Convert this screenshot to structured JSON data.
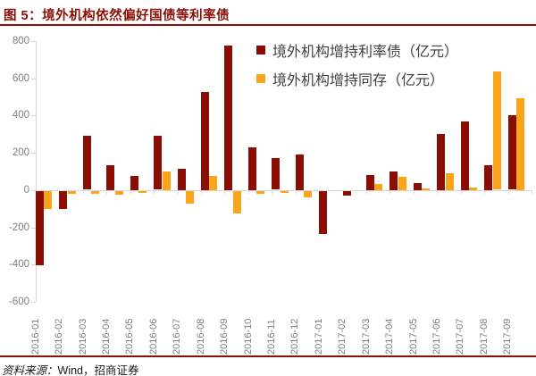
{
  "title": "图 5：境外机构依然偏好国债等利率债",
  "footer": {
    "prefix": "资料来源：",
    "source": "Wind，招商证券"
  },
  "colors": {
    "series_rate_bond": "#8B0E04",
    "series_ncd": "#F9A41B",
    "title_text": "#8B0E04",
    "rule_line": "#8B1008",
    "axis_text": "#7F7F7F",
    "axis_line": "#D6D6D6",
    "legend_text": "#3F3F3F"
  },
  "legend": [
    {
      "label": "境外机构增持利率债（亿元）",
      "color": "#8B0E04"
    },
    {
      "label": "境外机构增持同存（亿元）",
      "color": "#F9A41B"
    }
  ],
  "chart_data": {
    "type": "bar",
    "title": "境外机构依然偏好国债等利率债",
    "xlabel": "",
    "ylabel": "亿元",
    "ylim": [
      -600,
      800
    ],
    "y_ticks": [
      800,
      600,
      400,
      200,
      0,
      -200,
      -400,
      -600
    ],
    "grid": false,
    "legend_position": "top-right",
    "categories": [
      "2016-01",
      "2016-02",
      "2016-03",
      "2016-04",
      "2016-05",
      "2016-06",
      "2016-07",
      "2016-08",
      "2016-09",
      "2016-10",
      "2016-11",
      "2016-12",
      "2017-01",
      "2017-02",
      "2017-03",
      "2017-04",
      "2017-05",
      "2017-06",
      "2017-07",
      "2017-08",
      "2017-09"
    ],
    "series": [
      {
        "name": "境外机构增持利率债（亿元）",
        "color": "#8B0E04",
        "values": [
          -400,
          -95,
          290,
          135,
          75,
          290,
          115,
          525,
          775,
          230,
          170,
          190,
          -230,
          -25,
          80,
          100,
          40,
          300,
          370,
          135,
          400
        ]
      },
      {
        "name": "境外机构增持同存（亿元）",
        "color": "#F9A41B",
        "values": [
          -95,
          -15,
          -15,
          -20,
          -8,
          100,
          -65,
          75,
          -120,
          -15,
          -8,
          -35,
          0,
          0,
          35,
          70,
          10,
          90,
          15,
          635,
          495
        ]
      }
    ]
  }
}
